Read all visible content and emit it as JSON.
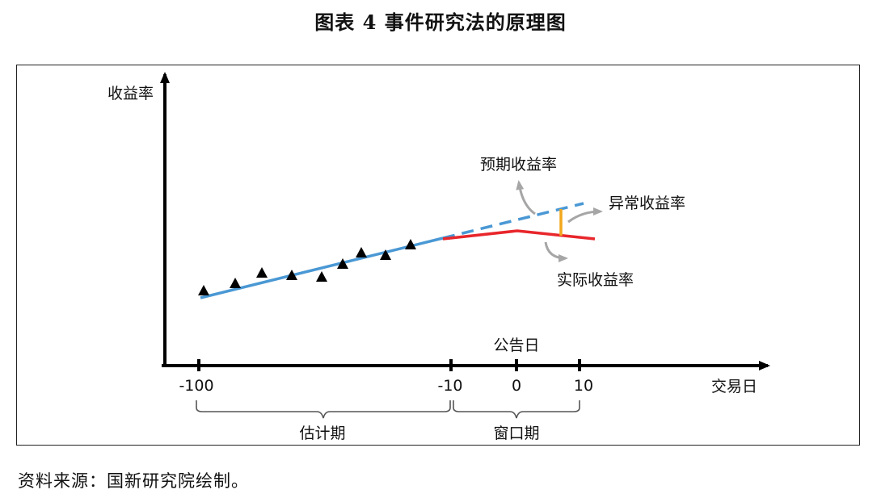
{
  "title": "图表 4  事件研究法的原理图",
  "source": "资料来源：国新研究院绘制。",
  "diagram": {
    "y_axis_label": "收益率",
    "x_axis_label": "交易日",
    "ticks": [
      "-100",
      "-10",
      "0",
      "10"
    ],
    "announcement_label": "公告日",
    "expected_return_label": "预期收益率",
    "abnormal_return_label": "异常收益率",
    "actual_return_label": "实际收益率",
    "estimation_window_label": "估计期",
    "event_window_label": "窗口期",
    "colors": {
      "estimation_line": "#4a98d4",
      "actual_line": "#e8262b",
      "abnormal_bar": "#f2a81d",
      "arrow": "#a6a6a6",
      "axis": "#000000"
    }
  }
}
